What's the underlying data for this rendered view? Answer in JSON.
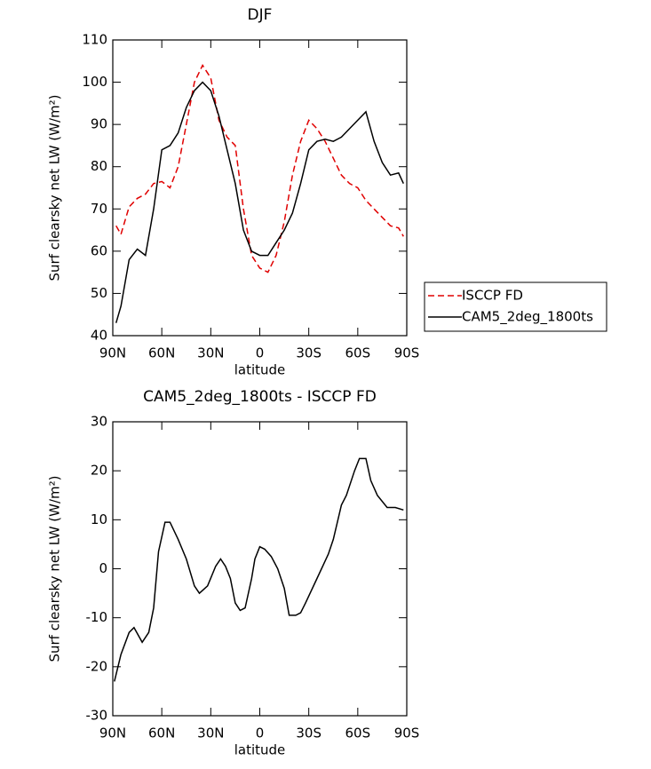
{
  "chart_data": [
    {
      "type": "line",
      "title": "DJF",
      "ylabel": "Surf clearsky net LW (W/m²)",
      "xlabel": "latitude",
      "x": [
        88,
        85,
        80,
        75,
        70,
        65,
        60,
        55,
        50,
        45,
        40,
        35,
        30,
        25,
        20,
        15,
        10,
        5,
        0,
        -5,
        -10,
        -15,
        -20,
        -25,
        -30,
        -35,
        -40,
        -45,
        -50,
        -55,
        -60,
        -65,
        -70,
        -75,
        -80,
        -85,
        -88
      ],
      "series": [
        {
          "name": "ISCCP FD",
          "color": "#e00000",
          "style": "dashed",
          "values": [
            66,
            64,
            70.5,
            72.5,
            73.5,
            76,
            76.5,
            75,
            80,
            90,
            100,
            104,
            101,
            91,
            87,
            85,
            70,
            59,
            56,
            55,
            59,
            67,
            78,
            86,
            91,
            89,
            86,
            82,
            78,
            76,
            75,
            72,
            70,
            68,
            66,
            65.5,
            63.5
          ]
        },
        {
          "name": "CAM5_2deg_1800ts",
          "color": "#000000",
          "style": "solid",
          "values": [
            43,
            47,
            58,
            60.5,
            59,
            70,
            84,
            85,
            88,
            94,
            98,
            100,
            98,
            92,
            84,
            76,
            65,
            60,
            59,
            59,
            62,
            65,
            69,
            76,
            84,
            86,
            86.5,
            86,
            87,
            89,
            91,
            93,
            86,
            81,
            78,
            78.5,
            76
          ]
        }
      ],
      "xlim": [
        90,
        -90
      ],
      "xticks": [
        {
          "value": 90,
          "label": "90N"
        },
        {
          "value": 60,
          "label": "60N"
        },
        {
          "value": 30,
          "label": "30N"
        },
        0,
        {
          "value": -30,
          "label": "30S"
        },
        {
          "value": -60,
          "label": "60S"
        },
        {
          "value": -90,
          "label": "90S"
        }
      ],
      "ylim": [
        40,
        110
      ],
      "yticks": [
        40,
        50,
        60,
        70,
        80,
        90,
        100,
        110
      ],
      "legend": "outside-right"
    },
    {
      "type": "line",
      "title": "CAM5_2deg_1800ts - ISCCP FD",
      "ylabel": "Surf clearsky net LW (W/m²)",
      "xlabel": "latitude",
      "x": [
        89,
        85,
        80,
        77,
        72,
        68,
        65,
        62,
        58,
        55,
        50,
        45,
        40,
        37,
        32,
        27,
        24,
        21,
        18,
        15,
        12,
        9,
        5,
        3,
        0,
        -3,
        -7,
        -11,
        -15,
        -18,
        -22,
        -25,
        -28,
        -35,
        -42,
        -45,
        -50,
        -53,
        -58,
        -61,
        -65,
        -68,
        -72,
        -78,
        -83,
        -88
      ],
      "series": [
        {
          "color": "#000000",
          "style": "solid",
          "values": [
            -23,
            -17.5,
            -13,
            -12,
            -15,
            -13,
            -8,
            3.5,
            9.5,
            9.5,
            6,
            2,
            -3.5,
            -5,
            -3.5,
            0.5,
            2,
            0.5,
            -2,
            -7,
            -8.5,
            -8,
            -2,
            2,
            4.5,
            4,
            2.5,
            0,
            -4,
            -9.5,
            -9.5,
            -9,
            -7,
            -2,
            3,
            6,
            13,
            15,
            20,
            22.5,
            22.5,
            18,
            15,
            12.5,
            12.5,
            12
          ]
        }
      ],
      "xlim": [
        90,
        -90
      ],
      "xticks": [
        {
          "value": 90,
          "label": "90N"
        },
        {
          "value": 60,
          "label": "60N"
        },
        {
          "value": 30,
          "label": "30N"
        },
        0,
        {
          "value": -30,
          "label": "30S"
        },
        {
          "value": -60,
          "label": "60S"
        },
        {
          "value": -90,
          "label": "90S"
        }
      ],
      "ylim": [
        -30,
        30
      ],
      "yticks": [
        -30,
        -20,
        -10,
        0,
        10,
        20,
        30
      ]
    }
  ]
}
